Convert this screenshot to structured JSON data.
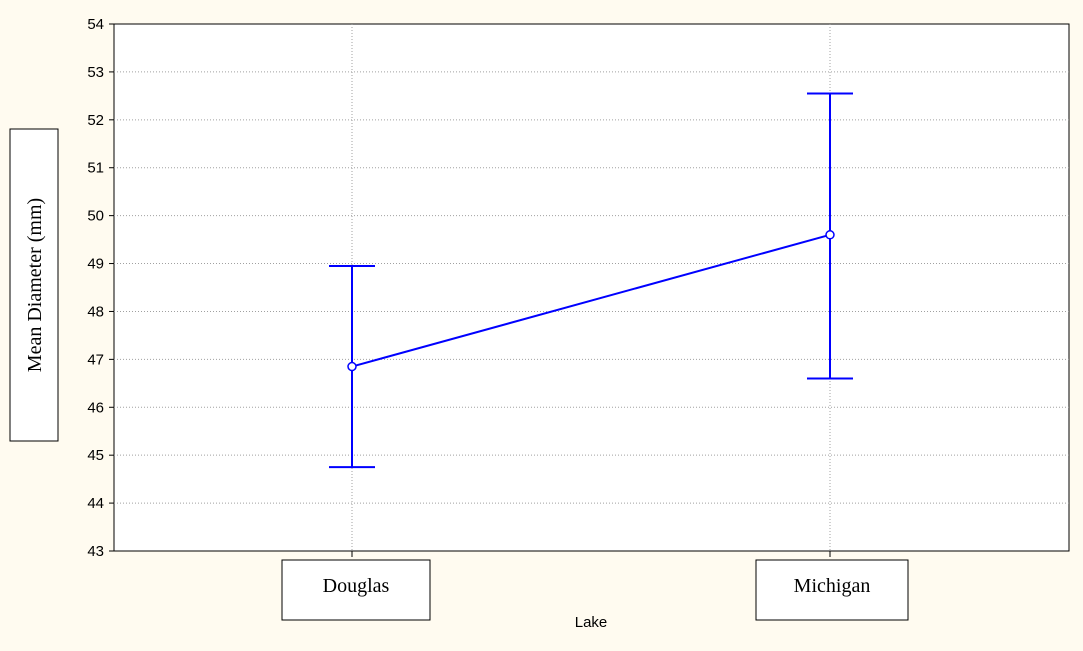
{
  "chart_data": {
    "type": "line",
    "title": "",
    "xlabel": "Lake",
    "ylabel": "Mean Diameter (mm)",
    "categories": [
      "Douglas",
      "Michigan"
    ],
    "series": [
      {
        "values": [
          46.85,
          49.6
        ],
        "error_low": [
          44.75,
          46.6
        ],
        "error_high": [
          48.95,
          52.55
        ]
      }
    ],
    "ylim": [
      43,
      54
    ],
    "yticks": [
      "43",
      "44",
      "45",
      "46",
      "47",
      "48",
      "49",
      "50",
      "51",
      "52",
      "53",
      "54"
    ],
    "grid": true,
    "colors": {
      "series": "#0000ff",
      "background": "#fffbf0",
      "plot_background": "#ffffff",
      "grid": "#a0a0a0"
    }
  }
}
